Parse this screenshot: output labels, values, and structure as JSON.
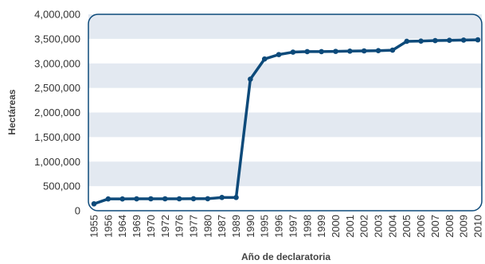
{
  "chart_data": {
    "type": "line",
    "xlabel": "Año de declaratoria",
    "ylabel": "Hectáreas",
    "ylim": [
      0,
      4000000
    ],
    "y_ticks": [
      0,
      500000,
      1000000,
      1500000,
      2000000,
      2500000,
      3000000,
      3500000,
      4000000
    ],
    "y_tick_labels": [
      "0",
      "500,000",
      "1,000,000",
      "1,500,000",
      "2,000,000",
      "2,500,000",
      "3,000,000",
      "3,500,000",
      "4,000,000"
    ],
    "categories": [
      "1955",
      "1956",
      "1964",
      "1969",
      "1970",
      "1972",
      "1976",
      "1977",
      "1980",
      "1987",
      "1989",
      "1990",
      "1995",
      "1996",
      "1997",
      "1998",
      "1999",
      "2000",
      "2001",
      "2002",
      "2003",
      "2004",
      "2005",
      "2006",
      "2007",
      "2008",
      "2009",
      "2010"
    ],
    "series": [
      {
        "values": [
          140000,
          240000,
          240000,
          242000,
          243000,
          243000,
          243000,
          244000,
          244000,
          270000,
          270000,
          2680000,
          3090000,
          3180000,
          3230000,
          3240000,
          3240000,
          3245000,
          3250000,
          3255000,
          3260000,
          3270000,
          3450000,
          3455000,
          3465000,
          3470000,
          3475000,
          3480000
        ],
        "color": "#0d4a7a"
      }
    ],
    "grid": "horizontal bands",
    "colors": {
      "band": "#e3e9f1",
      "plot_border": "#0d4a7a",
      "line": "#0d4a7a"
    }
  }
}
